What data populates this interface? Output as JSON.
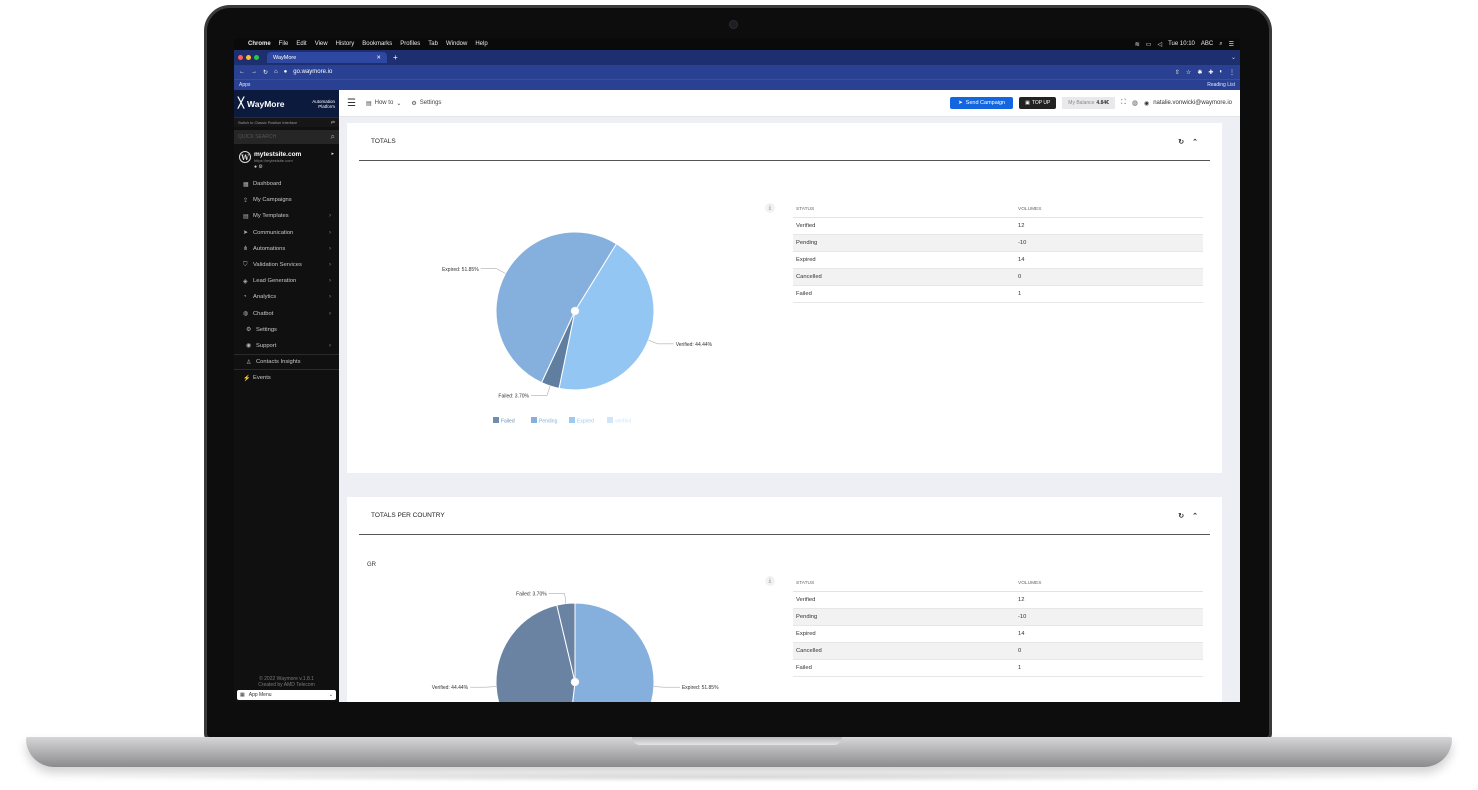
{
  "mac_menu": {
    "items": [
      "Chrome",
      "File",
      "Edit",
      "View",
      "History",
      "Bookmarks",
      "Profiles",
      "Tab",
      "Window",
      "Help"
    ],
    "clock": "Tue 10:10",
    "lang": "ABC"
  },
  "browser": {
    "tab_title": "WayMore",
    "url": "go.waymore.io",
    "bookmark_apps": "Apps",
    "reading_list": "Reading List"
  },
  "sidebar": {
    "brand": "WayMore",
    "brand_sub_1": "Automation",
    "brand_sub_2": "Platform",
    "switch_text": "Switch to Classic Position Interface",
    "search_placeholder": "QUICK SEARCH",
    "site": {
      "name": "mytestsite.com",
      "url": "https:\\/mytestsite.com"
    },
    "items": [
      {
        "label": "Dashboard",
        "icon": "dashboard-icon",
        "glyph": "▦"
      },
      {
        "label": "My Campaigns",
        "icon": "campaigns-icon",
        "glyph": "⇪"
      },
      {
        "label": "My Templates",
        "icon": "templates-icon",
        "glyph": "▤"
      },
      {
        "label": "Communication",
        "icon": "send-icon",
        "glyph": "➤"
      },
      {
        "label": "Automations",
        "icon": "automations-icon",
        "glyph": "⋔"
      },
      {
        "label": "Validation Services",
        "icon": "shield-icon",
        "glyph": "⛉"
      },
      {
        "label": "Lead Generation",
        "icon": "tag-icon",
        "glyph": "◈"
      },
      {
        "label": "Analytics",
        "icon": "analytics-icon",
        "glyph": "◔"
      },
      {
        "label": "Chatbot",
        "icon": "chatbot-icon",
        "glyph": "◍"
      },
      {
        "label": "Settings",
        "icon": "gear-icon",
        "glyph": "⚙"
      },
      {
        "label": "Support",
        "icon": "support-icon",
        "glyph": "◉"
      },
      {
        "label": "Contacts Insights",
        "icon": "contacts-icon",
        "glyph": "♙"
      },
      {
        "label": "Events",
        "icon": "events-icon",
        "glyph": "⚡"
      }
    ],
    "footer_1": "© 2022 Waymore v.1.8.1",
    "footer_2": "Created by AMD Telecom",
    "app_menu": "App Menu"
  },
  "topbar": {
    "howto": "How to",
    "settings": "Settings",
    "send_campaign": "Send Campaign",
    "top_up": "TOP UP",
    "balance_label": "My Balance",
    "balance_value": "4.84€",
    "user_email": "natalie.vonwicki@waymore.io"
  },
  "totals": {
    "title": "TOTALS",
    "col_status": "STATUS",
    "col_volumes": "VOLUMES",
    "rows": [
      {
        "status": "Verified",
        "volume": "12"
      },
      {
        "status": "Pending",
        "volume": "-10"
      },
      {
        "status": "Expired",
        "volume": "14"
      },
      {
        "status": "Cancelled",
        "volume": "0"
      },
      {
        "status": "Failed",
        "volume": "1"
      }
    ],
    "slice_labels": {
      "expired": "Expired: 51.85%",
      "verified": "Verified: 44.44%",
      "failed": "Failed: 3.70%"
    },
    "legend": [
      "Failed",
      "Pending",
      "Expired",
      "verified"
    ]
  },
  "per_country": {
    "title": "TOTALS PER COUNTRY",
    "country": "GR",
    "col_status": "STATUS",
    "col_volumes": "VOLUMES",
    "rows": [
      {
        "status": "Verified",
        "volume": "12"
      },
      {
        "status": "Pending",
        "volume": "-10"
      },
      {
        "status": "Expired",
        "volume": "14"
      },
      {
        "status": "Cancelled",
        "volume": "0"
      },
      {
        "status": "Failed",
        "volume": "1"
      }
    ],
    "slice_labels": {
      "failed": "Failed: 3.70%",
      "expired": "Expired: 51.85%",
      "verified": "Verified: 44.44%"
    }
  },
  "chart_data": [
    {
      "type": "pie",
      "title": "TOTALS",
      "categories": [
        "Expired",
        "Verified",
        "Failed"
      ],
      "values": [
        51.85,
        44.44,
        3.7
      ],
      "colors": [
        "#85b0dd",
        "#93c6f3",
        "#5f7ea0"
      ],
      "legend": [
        "Failed",
        "Pending",
        "Expired",
        "verified"
      ],
      "legend_colors": [
        "#6d8db1",
        "#85b0dd",
        "#9ec9f2",
        "#cfe5fa"
      ]
    },
    {
      "type": "pie",
      "title": "TOTALS PER COUNTRY",
      "subtitle": "GR",
      "categories": [
        "Expired",
        "Verified",
        "Failed"
      ],
      "values": [
        51.85,
        44.44,
        3.7
      ],
      "colors": [
        "#85b0dd",
        "#6a83a3",
        "#6a83a3"
      ]
    }
  ]
}
